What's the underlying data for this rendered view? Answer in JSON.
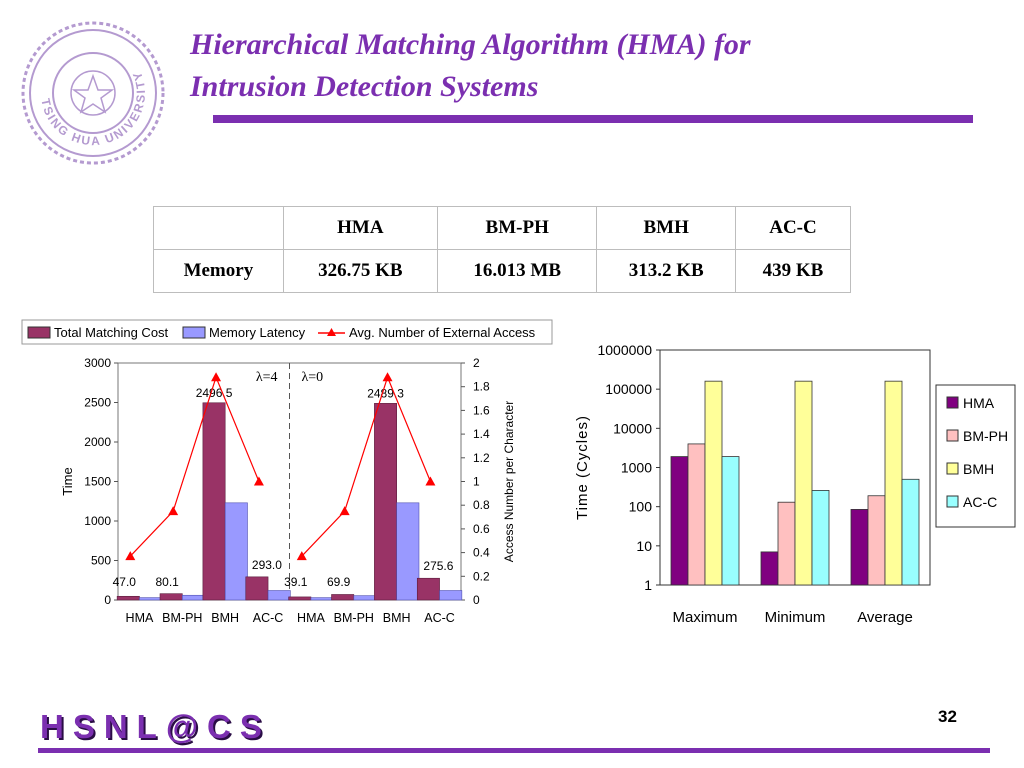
{
  "slide": {
    "title_line1": "Hierarchical Matching Algorithm (HMA) for",
    "title_line2": "Intrusion Detection Systems",
    "page_number": "32",
    "footer_brand": "HSNL@CS",
    "logo_text": "TSING HUA UNIVERSITY",
    "accent_color": "#7b2fb0"
  },
  "memory_table": {
    "headers": [
      "",
      "HMA",
      "BM-PH",
      "BMH",
      "AC-C"
    ],
    "row_label": "Memory",
    "values": [
      "326.75 KB",
      "16.013 MB",
      "313.2 KB",
      "439 KB"
    ]
  },
  "chart_data": [
    {
      "type": "bar",
      "legend": [
        "Total Matching Cost",
        "Memory Latency",
        "Avg. Number of External Access"
      ],
      "groups": [
        {
          "label": "λ=4",
          "categories": [
            "HMA",
            "BM-PH",
            "BMH",
            "AC-C"
          ],
          "total_matching_cost": [
            47.0,
            80.1,
            2496.5,
            293.0
          ],
          "memory_latency": [
            30,
            60,
            1230,
            120
          ],
          "external_access": [
            0.37,
            0.75,
            1.88,
            1.0
          ]
        },
        {
          "label": "λ=0",
          "categories": [
            "HMA",
            "BM-PH",
            "BMH",
            "AC-C"
          ],
          "total_matching_cost": [
            39.1,
            69.9,
            2489.3,
            275.6
          ],
          "memory_latency": [
            30,
            55,
            1230,
            120
          ],
          "external_access": [
            0.37,
            0.75,
            1.88,
            1.0
          ]
        }
      ],
      "data_labels": [
        "47.0",
        "80.1",
        "2496.5",
        "293.0",
        "39.1",
        "69.9",
        "2489.3",
        "275.6"
      ],
      "group_labels": [
        "λ=4",
        "λ=0"
      ],
      "ylabel": "Time",
      "ylabel_right": "Access Number per Character",
      "ylim": [
        0,
        3000
      ],
      "ylim_right": [
        0,
        2
      ],
      "y_ticks": [
        "0",
        "500",
        "1000",
        "1500",
        "2000",
        "2500",
        "3000"
      ],
      "y_ticks_right": [
        "0",
        "0.2",
        "0.4",
        "0.6",
        "0.8",
        "1",
        "1.2",
        "1.4",
        "1.6",
        "1.8",
        "2"
      ],
      "colors": {
        "total": "#993366",
        "latency": "#9999ff",
        "access": "#ff0000"
      }
    },
    {
      "type": "bar",
      "scale": "log",
      "categories": [
        "Maximum",
        "Minimum",
        "Average"
      ],
      "series": [
        {
          "name": "HMA",
          "values": [
            1900,
            7,
            85
          ],
          "color": "#800080"
        },
        {
          "name": "BM-PH",
          "values": [
            4000,
            130,
            190
          ],
          "color": "#ffc0c0"
        },
        {
          "name": "BMH",
          "values": [
            160000,
            160000,
            160000
          ],
          "color": "#ffff99"
        },
        {
          "name": "AC-C",
          "values": [
            1900,
            260,
            500
          ],
          "color": "#99ffff"
        }
      ],
      "ylabel": "Time (Cycles)",
      "y_ticks": [
        "1",
        "10",
        "100",
        "1000",
        "10000",
        "100000",
        "1000000"
      ],
      "ylim": [
        1,
        1000000
      ]
    }
  ]
}
